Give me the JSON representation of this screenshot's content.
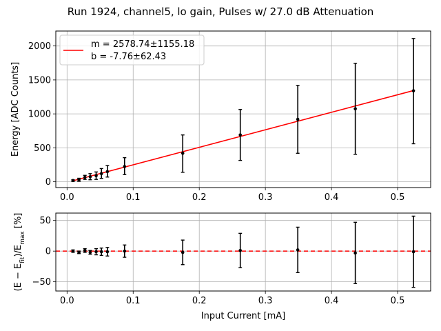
{
  "title": "Run 1924, channel5, lo gain, Pulses w/ 27.0 dB Attenuation",
  "chart_data": [
    {
      "type": "scatter",
      "name": "energy-vs-current",
      "ylabel": "Energy [ADC Counts]",
      "xlabel": "",
      "xlim": [
        -0.017,
        0.55
      ],
      "ylim": [
        -85,
        2220
      ],
      "xticks": [
        0.0,
        0.1,
        0.2,
        0.3,
        0.4,
        0.5
      ],
      "xtick_labels": [
        "0.0",
        "0.1",
        "0.2",
        "0.3",
        "0.4",
        "0.5"
      ],
      "yticks": [
        0,
        500,
        1000,
        1500,
        2000
      ],
      "ytick_labels": [
        "0",
        "500",
        "1000",
        "1500",
        "2000"
      ],
      "grid": true,
      "points": {
        "x": [
          0.009,
          0.018,
          0.027,
          0.035,
          0.044,
          0.052,
          0.061,
          0.087,
          0.175,
          0.262,
          0.349,
          0.436,
          0.524
        ],
        "y": [
          18,
          30,
          65,
          75,
          90,
          120,
          150,
          225,
          420,
          690,
          920,
          1075,
          1340
        ],
        "yerr_low": [
          12,
          22,
          30,
          45,
          55,
          70,
          80,
          120,
          280,
          375,
          500,
          670,
          780
        ],
        "yerr_high": [
          12,
          22,
          30,
          45,
          55,
          75,
          90,
          130,
          270,
          375,
          500,
          670,
          770
        ]
      },
      "fit": {
        "label": "m = 2578.74±1155.18\nb = -7.76±62.43",
        "label_line1": "m = 2578.74±1155.18",
        "label_line2": "b = -7.76±62.43",
        "slope": 2578.74,
        "intercept": -7.76,
        "x_range": [
          0.009,
          0.524
        ],
        "color": "#ff0000"
      },
      "legend_position": "upper-left"
    },
    {
      "type": "scatter",
      "name": "residuals",
      "ylabel": "(E − E_fit)/E_max [%]",
      "ylabel_main": "(E − E",
      "ylabel_sub1": "fit",
      "ylabel_mid": ")/E",
      "ylabel_sub2": "max",
      "ylabel_end": " [%]",
      "xlabel": "Input Current [mA]",
      "xlim": [
        -0.017,
        0.55
      ],
      "ylim": [
        -65,
        62
      ],
      "xticks": [
        0.0,
        0.1,
        0.2,
        0.3,
        0.4,
        0.5
      ],
      "xtick_labels": [
        "0.0",
        "0.1",
        "0.2",
        "0.3",
        "0.4",
        "0.5"
      ],
      "yticks": [
        -50,
        0,
        50
      ],
      "ytick_labels": [
        "−50",
        "0",
        "50"
      ],
      "grid": true,
      "points": {
        "x": [
          0.009,
          0.018,
          0.027,
          0.035,
          0.044,
          0.052,
          0.061,
          0.087,
          0.175,
          0.262,
          0.349,
          0.436,
          0.524
        ],
        "y": [
          0,
          -2,
          1,
          -2,
          -1,
          -1,
          -1,
          0,
          -2,
          1,
          2,
          -3,
          -1
        ],
        "yerr": [
          2,
          2,
          3,
          3,
          5,
          6,
          7,
          10,
          20,
          28,
          37,
          50,
          58
        ]
      },
      "zero_line_color": "#ff0000"
    }
  ]
}
